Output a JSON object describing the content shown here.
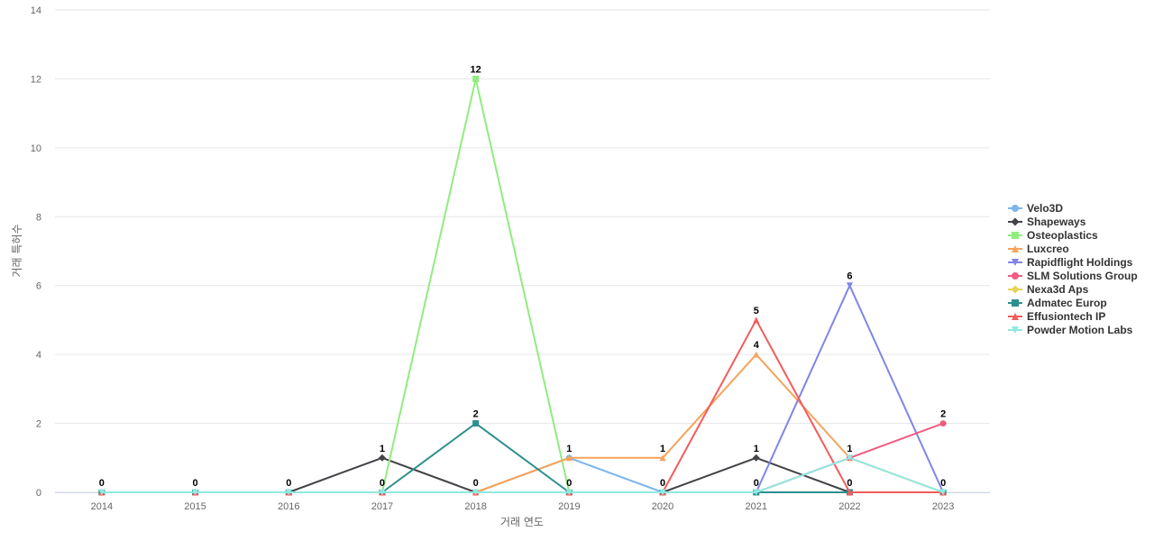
{
  "chart_data": {
    "type": "line",
    "title": "",
    "xlabel": "거래 연도",
    "ylabel": "거래 특허수",
    "x": [
      "2014",
      "2015",
      "2016",
      "2017",
      "2018",
      "2019",
      "2020",
      "2021",
      "2022",
      "2023"
    ],
    "ylim": [
      0,
      14
    ],
    "yticks": [
      0,
      2,
      4,
      6,
      8,
      10,
      12,
      14
    ],
    "grid": true,
    "legend_position": "right",
    "series": [
      {
        "name": "Velo3D",
        "color": "#7cb5ec",
        "marker": "circle",
        "values": [
          0,
          0,
          0,
          0,
          0,
          1,
          0,
          0,
          0,
          0
        ]
      },
      {
        "name": "Shapeways",
        "color": "#434348",
        "marker": "diamond",
        "values": [
          0,
          0,
          0,
          1,
          0,
          0,
          0,
          1,
          0,
          0
        ]
      },
      {
        "name": "Osteoplastics",
        "color": "#90ed7d",
        "marker": "square",
        "values": [
          0,
          0,
          0,
          0,
          12,
          0,
          0,
          0,
          0,
          0
        ]
      },
      {
        "name": "Luxcreo",
        "color": "#f7a35c",
        "marker": "triangle",
        "values": [
          0,
          0,
          0,
          0,
          0,
          1,
          1,
          4,
          1,
          0
        ]
      },
      {
        "name": "Rapidflight Holdings",
        "color": "#8085e9",
        "marker": "triangle-down",
        "values": [
          0,
          0,
          0,
          0,
          0,
          0,
          0,
          0,
          6,
          0
        ]
      },
      {
        "name": "SLM Solutions Group",
        "color": "#f15c80",
        "marker": "circle",
        "values": [
          0,
          0,
          0,
          0,
          0,
          0,
          0,
          0,
          1,
          2
        ]
      },
      {
        "name": "Nexa3d Aps",
        "color": "#e4d354",
        "marker": "diamond",
        "values": [
          0,
          0,
          0,
          0,
          0,
          0,
          0,
          0,
          0,
          0
        ]
      },
      {
        "name": "Admatec Europ",
        "color": "#2b908f",
        "marker": "square",
        "values": [
          0,
          0,
          0,
          0,
          2,
          0,
          0,
          0,
          0,
          0
        ]
      },
      {
        "name": "Effusiontech IP",
        "color": "#f45b5b",
        "marker": "triangle",
        "values": [
          0,
          0,
          0,
          0,
          0,
          0,
          0,
          5,
          0,
          0
        ]
      },
      {
        "name": "Powder Motion Labs",
        "color": "#91e8e1",
        "marker": "triangle-down",
        "values": [
          0,
          0,
          0,
          0,
          0,
          0,
          0,
          0,
          1,
          0
        ]
      }
    ],
    "point_labels": [
      "0",
      "0",
      "0",
      "1",
      "12",
      "1",
      "1",
      "5",
      "6",
      "2"
    ],
    "point_labels_extra": [
      {
        "x": "2017",
        "value": 0,
        "text": "0"
      },
      {
        "x": "2018",
        "value": 2,
        "text": "2"
      },
      {
        "x": "2018",
        "value": 0,
        "text": "0"
      },
      {
        "x": "2019",
        "value": 0,
        "text": "0"
      },
      {
        "x": "2020",
        "value": 0,
        "text": "0"
      },
      {
        "x": "2021",
        "value": 4,
        "text": "4"
      },
      {
        "x": "2021",
        "value": 1,
        "text": "1"
      },
      {
        "x": "2021",
        "value": 0,
        "text": "0"
      },
      {
        "x": "2022",
        "value": 1,
        "text": "1"
      },
      {
        "x": "2022",
        "value": 0,
        "text": "0"
      },
      {
        "x": "2023",
        "value": 0,
        "text": "0"
      }
    ]
  }
}
